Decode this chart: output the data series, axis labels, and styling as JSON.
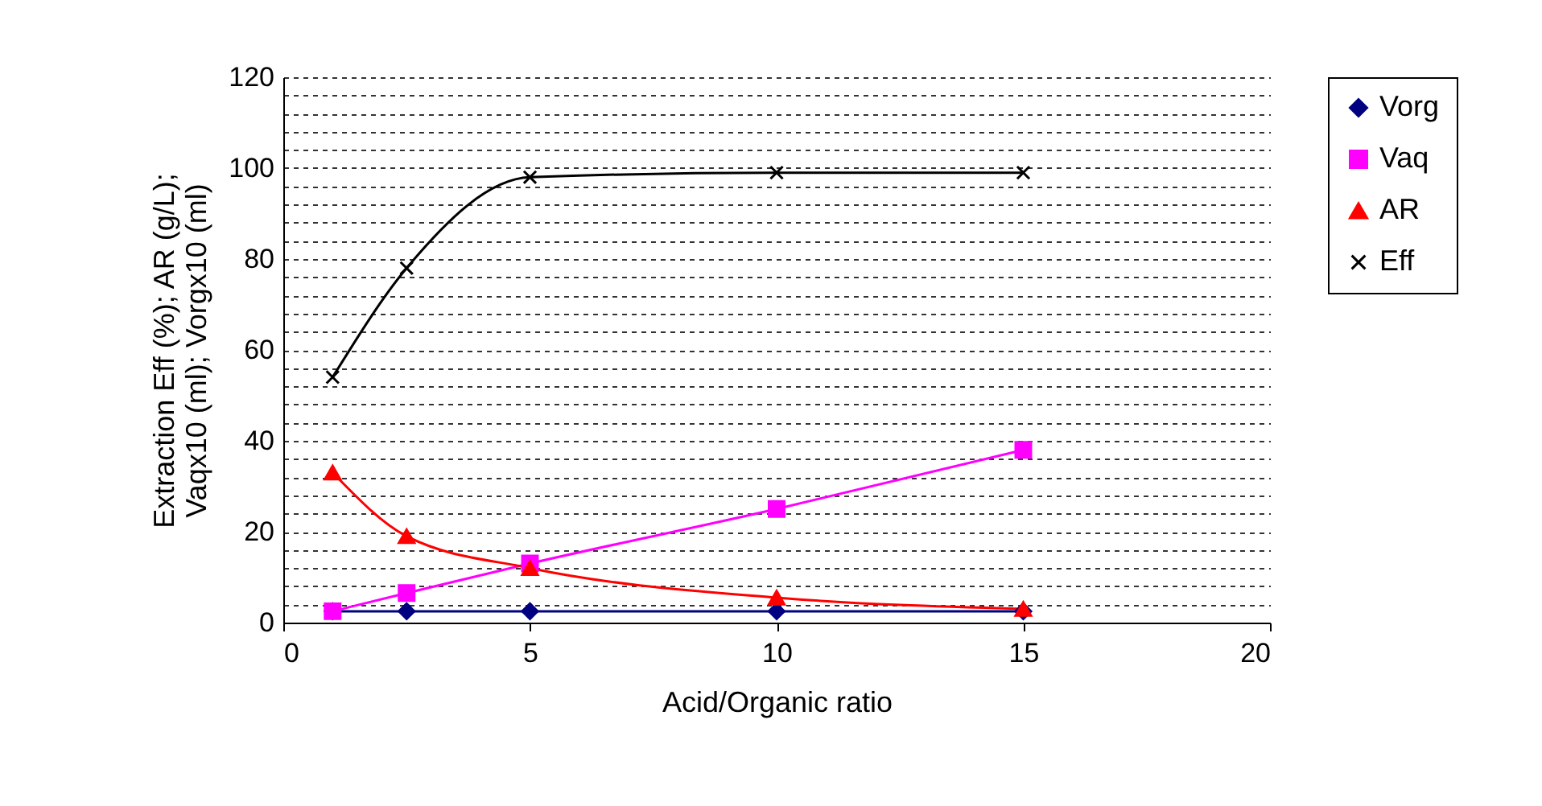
{
  "chart_data": {
    "type": "line",
    "xlabel": "Acid/Organic ratio",
    "ylabel": "Extraction Eff (%); AR (g/L); Vaqx10 (ml); Vorgx10 (ml)",
    "x": [
      1,
      2.5,
      5,
      10,
      15
    ],
    "series": [
      {
        "name": "Vorg",
        "color": "#000080",
        "marker": "diamond",
        "values": [
          2.5,
          2.5,
          2.5,
          2.5,
          2.5
        ]
      },
      {
        "name": "Vaq",
        "color": "#ff00ff",
        "marker": "square",
        "values": [
          2.5,
          6.5,
          13,
          25,
          38
        ]
      },
      {
        "name": "AR",
        "color": "#ff0000",
        "marker": "triangle",
        "values": [
          33,
          19,
          12,
          5.5,
          3
        ]
      },
      {
        "name": "Eff",
        "color": "#000000",
        "marker": "cross",
        "values": [
          54,
          78,
          98,
          99,
          99
        ]
      }
    ],
    "xlim": [
      0,
      20
    ],
    "xticks": [
      0,
      5,
      10,
      15,
      20
    ],
    "ylim": [
      0,
      120
    ],
    "yticks": [
      0,
      {
        "value": 4,
        "label": null
      },
      {
        "value": 8,
        "label": null
      },
      {
        "value": 12,
        "label": null
      },
      {
        "value": 16,
        "label": null
      },
      20,
      {
        "value": 24,
        "label": null
      },
      {
        "value": 28,
        "label": null
      },
      {
        "value": 32,
        "label": null
      },
      {
        "value": 36,
        "label": null
      },
      40,
      {
        "value": 44,
        "label": null
      },
      {
        "value": 48,
        "label": null
      },
      {
        "value": 52,
        "label": null
      },
      {
        "value": 56,
        "label": null
      },
      60,
      {
        "value": 64,
        "label": null
      },
      {
        "value": 68,
        "label": null
      },
      {
        "value": 72,
        "label": null
      },
      {
        "value": 76,
        "label": null
      },
      80,
      {
        "value": 84,
        "label": null
      },
      {
        "value": 88,
        "label": null
      },
      {
        "value": 92,
        "label": null
      },
      {
        "value": 96,
        "label": null
      },
      100,
      {
        "value": 104,
        "label": null
      },
      {
        "value": 108,
        "label": null
      },
      {
        "value": 112,
        "label": null
      },
      {
        "value": 116,
        "label": null
      },
      120
    ],
    "grid": "y",
    "legend": "right",
    "line_style": "solid"
  }
}
